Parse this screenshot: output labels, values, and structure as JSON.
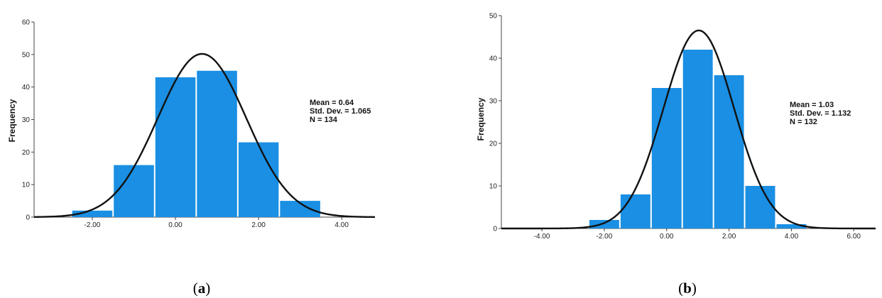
{
  "chart_data": [
    {
      "type": "bar",
      "caption_open": "(",
      "caption_letter": "a",
      "caption_close": ")",
      "ylabel": "Frequency",
      "ylim": [
        0,
        60
      ],
      "yticks": [
        0,
        10,
        20,
        30,
        40,
        50,
        60
      ],
      "ytick_labels": [
        "0",
        "10",
        "20",
        "30",
        "40",
        "50",
        "60"
      ],
      "xlim": [
        -3.4,
        4.8
      ],
      "xticks": [
        -2,
        0,
        2,
        4
      ],
      "xtick_labels": [
        "-2.00",
        "0.00",
        "2.00",
        "4.00"
      ],
      "bin_edges": [
        -2.5,
        -1.5,
        -0.5,
        0.5,
        1.5,
        2.5,
        3.5
      ],
      "values": [
        2,
        16,
        43,
        45,
        23,
        5
      ],
      "bar_color": "#1a8fe3",
      "curve": {
        "type": "normal",
        "mean": 0.64,
        "sd": 1.065,
        "n": 134,
        "bin_width": 1.0
      },
      "stats": [
        "Mean = 0.64",
        "Std. Dev. = 1.065",
        "N = 134"
      ]
    },
    {
      "type": "bar",
      "caption_open": "(",
      "caption_letter": "b",
      "caption_close": ")",
      "ylabel": "Frequency",
      "ylim": [
        0,
        50
      ],
      "yticks": [
        0,
        10,
        20,
        30,
        40,
        50
      ],
      "ytick_labels": [
        "0",
        "10",
        "20",
        "30",
        "40",
        "50"
      ],
      "xlim": [
        -5.3,
        6.7
      ],
      "xticks": [
        -4,
        -2,
        0,
        2,
        4,
        6
      ],
      "xtick_labels": [
        "-4.00",
        "-2.00",
        "0.00",
        "2.00",
        "4.00",
        "6.00"
      ],
      "bin_edges": [
        -2.5,
        -1.5,
        -0.5,
        0.5,
        1.5,
        2.5,
        3.5,
        4.5
      ],
      "values": [
        2,
        8,
        33,
        42,
        36,
        10,
        1
      ],
      "bar_color": "#1a8fe3",
      "curve": {
        "type": "normal",
        "mean": 1.03,
        "sd": 1.132,
        "n": 132,
        "bin_width": 1.0
      },
      "stats": [
        "Mean = 1.03",
        "Std. Dev. = 1.132",
        "N = 132"
      ]
    }
  ]
}
